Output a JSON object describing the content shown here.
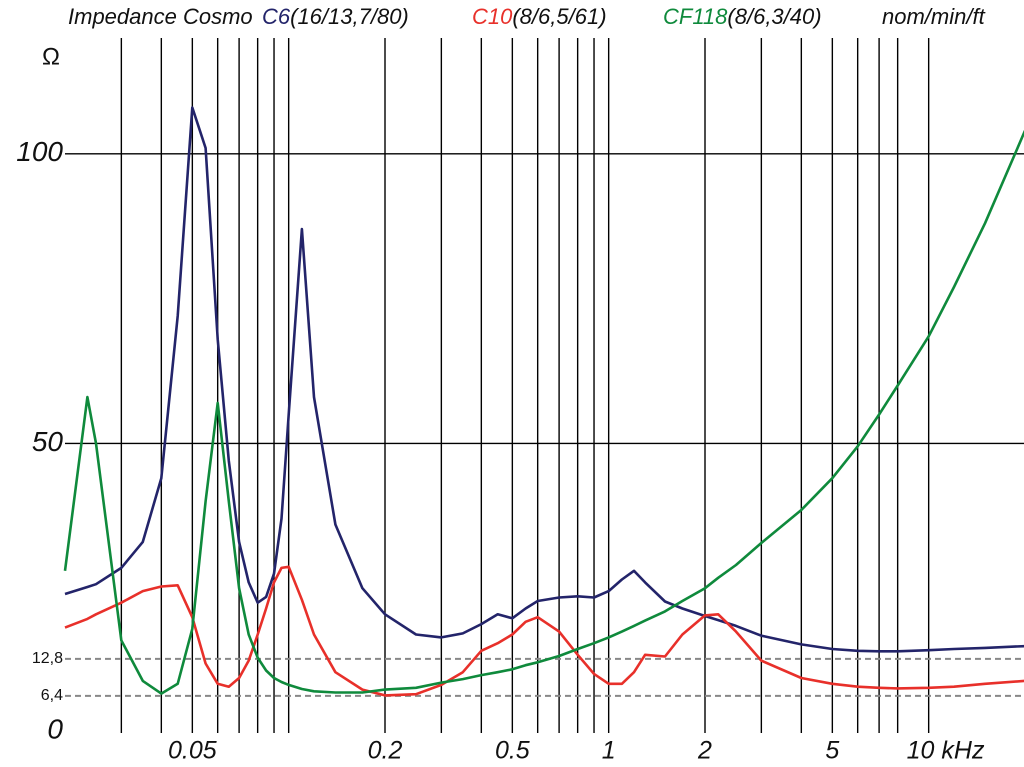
{
  "chart_data": {
    "type": "line",
    "title": "Impedance Cosmo",
    "legend_note": "nom/min/ft",
    "y_label": "Ω",
    "x_scale": "log",
    "xlim": [
      0.02,
      20
    ],
    "ylim": [
      0,
      120
    ],
    "xticks": [
      0.05,
      0.2,
      0.5,
      1,
      2,
      5,
      {
        "value": 10,
        "label": "10 kHz"
      }
    ],
    "xgrid": [
      0.03,
      0.04,
      0.06,
      0.07,
      0.08,
      0.09,
      0.1,
      0.3,
      0.4,
      0.6,
      0.7,
      0.8,
      0.9,
      3,
      4,
      6,
      7,
      8
    ],
    "yticks": [
      0,
      {
        "value": 6.4,
        "label": "6,4"
      },
      {
        "value": 12.8,
        "label": "12,8"
      },
      50,
      100
    ],
    "x": [
      0.02,
      0.0235,
      0.025,
      0.03,
      0.035,
      0.04,
      0.045,
      0.05,
      0.055,
      0.06,
      0.065,
      0.07,
      0.075,
      0.08,
      0.085,
      0.09,
      0.095,
      0.1,
      0.11,
      0.12,
      0.14,
      0.17,
      0.2,
      0.25,
      0.3,
      0.35,
      0.4,
      0.45,
      0.5,
      0.55,
      0.6,
      0.7,
      0.8,
      0.9,
      1,
      1.1,
      1.2,
      1.3,
      1.5,
      1.7,
      2,
      2.2,
      2.5,
      3,
      4,
      5,
      6,
      7,
      8,
      10,
      12,
      15,
      20
    ],
    "series": [
      {
        "name": "C6",
        "spec": "(16/13,7/80)",
        "color": "#23246a",
        "values": [
          24,
          25.2,
          25.7,
          28.5,
          33,
          44,
          72,
          108,
          101,
          68,
          47,
          33,
          26,
          22.5,
          23.5,
          27.5,
          37,
          55,
          87,
          58,
          36,
          25,
          20.5,
          17,
          16.5,
          17.2,
          18.8,
          20.5,
          19.8,
          21.5,
          22.8,
          23.4,
          23.6,
          23.4,
          24.5,
          26.5,
          28,
          26,
          22.7,
          21.5,
          20.2,
          19.5,
          18.5,
          16.8,
          15.3,
          14.5,
          14.2,
          14.1,
          14.1,
          14.3,
          14.5,
          14.7,
          15
        ]
      },
      {
        "name": "C10",
        "spec": "(8/6,5/61)",
        "color": "#e8302a",
        "values": [
          18.2,
          19.7,
          20.5,
          22.5,
          24.5,
          25.3,
          25.5,
          20,
          12,
          8.5,
          8,
          9.5,
          12.5,
          17,
          21.5,
          26,
          28.5,
          28.7,
          23,
          17,
          10.5,
          7.5,
          6.5,
          6.7,
          8.3,
          10.5,
          14.2,
          15.5,
          17,
          19.2,
          20,
          17.5,
          13.5,
          10.2,
          8.5,
          8.5,
          10.5,
          13.5,
          13.2,
          17,
          20.3,
          20.5,
          17.5,
          12.5,
          9.5,
          8.5,
          8,
          7.8,
          7.7,
          7.8,
          8,
          8.5,
          9
        ]
      },
      {
        "name": "CF118",
        "spec": "(8/6,3/40)",
        "color": "#0f8a3c",
        "values": [
          28,
          58,
          50,
          16,
          9,
          6.8,
          8.5,
          18,
          40,
          57,
          40,
          25,
          17,
          13,
          10.8,
          9.5,
          8.8,
          8.3,
          7.6,
          7.2,
          7,
          7,
          7.5,
          7.8,
          8.7,
          9.3,
          10,
          10.5,
          11,
          11.7,
          12.2,
          13.3,
          14.5,
          15.5,
          16.5,
          17.5,
          18.5,
          19.4,
          21,
          22.8,
          25,
          26.8,
          29,
          32.8,
          38.5,
          44,
          49.5,
          55,
          60,
          68.5,
          77,
          88,
          104
        ]
      }
    ]
  }
}
